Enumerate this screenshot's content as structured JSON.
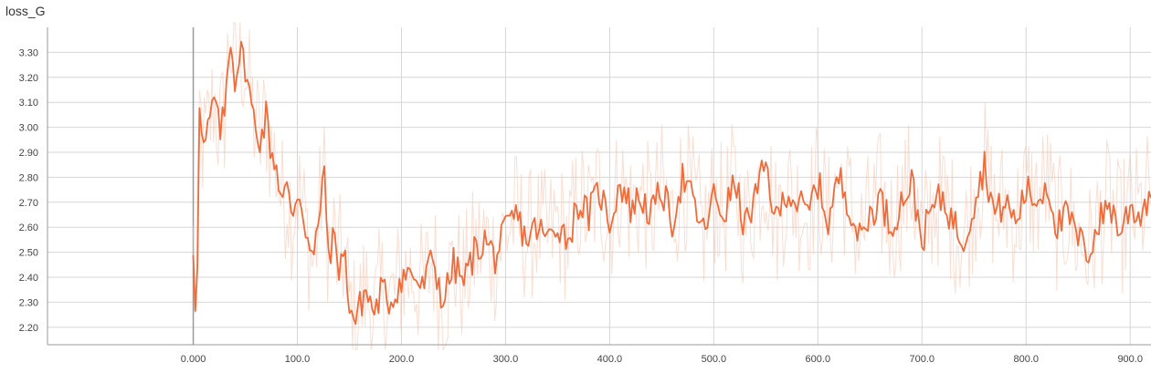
{
  "chart_data": {
    "type": "line",
    "title": "loss_G",
    "xlabel": "",
    "ylabel": "",
    "xlim": [
      -140,
      920
    ],
    "ylim": [
      2.13,
      3.4
    ],
    "x_ticks": [
      0,
      100,
      200,
      300,
      400,
      500,
      600,
      700,
      800,
      900
    ],
    "x_tick_labels": [
      "0.000",
      "100.0",
      "200.0",
      "300.0",
      "400.0",
      "500.0",
      "600.0",
      "700.0",
      "800.0",
      "900.0"
    ],
    "y_ticks": [
      2.2,
      2.3,
      2.4,
      2.5,
      2.6,
      2.7,
      2.8,
      2.9,
      3.0,
      3.1,
      3.2,
      3.3
    ],
    "y_tick_labels": [
      "2.20",
      "2.30",
      "2.40",
      "2.50",
      "2.60",
      "2.70",
      "2.80",
      "2.90",
      "3.00",
      "3.10",
      "3.20",
      "3.30"
    ],
    "grid": true,
    "series": [
      {
        "role": "smoothed",
        "color": "#f06b3a",
        "x": [
          0,
          3,
          6,
          10,
          15,
          20,
          25,
          30,
          35,
          40,
          45,
          50,
          55,
          60,
          65,
          70,
          75,
          80,
          85,
          90,
          95,
          100,
          105,
          110,
          115,
          120,
          125,
          130,
          135,
          140,
          145,
          150,
          155,
          160,
          165,
          170,
          175,
          180,
          190,
          200,
          210,
          220,
          230,
          240,
          250,
          260,
          270,
          280,
          290,
          300,
          310,
          320,
          330,
          340,
          350,
          360,
          370,
          380,
          390,
          400,
          410,
          420,
          430,
          440,
          450,
          460,
          470,
          480,
          490,
          500,
          510,
          520,
          530,
          540,
          550,
          560,
          570,
          580,
          590,
          600,
          610,
          620,
          630,
          640,
          650,
          660,
          670,
          680,
          690,
          700,
          710,
          720,
          730,
          740,
          750,
          760,
          770,
          780,
          790,
          800,
          810,
          820,
          830,
          840,
          850,
          860,
          870,
          880,
          890,
          900,
          910,
          920
        ],
        "values": [
          2.52,
          2.21,
          3.05,
          2.9,
          3.0,
          3.12,
          2.98,
          3.05,
          3.38,
          3.2,
          3.3,
          3.25,
          3.1,
          3.0,
          2.95,
          3.05,
          2.9,
          2.85,
          2.7,
          2.75,
          2.65,
          2.75,
          2.68,
          2.55,
          2.45,
          2.6,
          2.85,
          2.5,
          2.55,
          2.45,
          2.5,
          2.3,
          2.22,
          2.28,
          2.35,
          2.3,
          2.25,
          2.35,
          2.3,
          2.4,
          2.42,
          2.35,
          2.48,
          2.3,
          2.45,
          2.38,
          2.5,
          2.55,
          2.48,
          2.58,
          2.65,
          2.55,
          2.6,
          2.55,
          2.62,
          2.55,
          2.7,
          2.65,
          2.75,
          2.62,
          2.78,
          2.68,
          2.72,
          2.65,
          2.75,
          2.62,
          2.8,
          2.7,
          2.58,
          2.72,
          2.65,
          2.78,
          2.6,
          2.72,
          2.85,
          2.62,
          2.75,
          2.7,
          2.65,
          2.78,
          2.62,
          2.8,
          2.7,
          2.55,
          2.65,
          2.72,
          2.6,
          2.7,
          2.78,
          2.55,
          2.68,
          2.72,
          2.62,
          2.55,
          2.7,
          2.85,
          2.65,
          2.7,
          2.62,
          2.75,
          2.7,
          2.78,
          2.6,
          2.65,
          2.55,
          2.5,
          2.62,
          2.7,
          2.58,
          2.68,
          2.65,
          2.75
        ]
      }
    ]
  }
}
